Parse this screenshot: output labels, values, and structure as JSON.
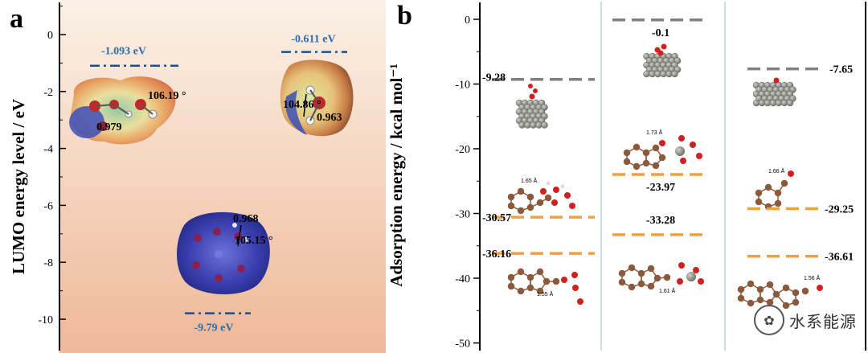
{
  "chart_data": [
    {
      "panel_label": "a",
      "type": "scatter",
      "ylabel": "LUMO energy level / eV",
      "ylim": [
        -11,
        1
      ],
      "yticks": [
        0,
        -2,
        -4,
        -6,
        -8,
        -10
      ],
      "levels": [
        {
          "value": -1.093,
          "label": "-1.093 eV",
          "color": "#1f4e8c"
        },
        {
          "value": -0.611,
          "label": "-0.611 eV",
          "color": "#1f4e8c"
        },
        {
          "value": -9.79,
          "label": "-9.79 eV",
          "color": "#1f4e8c"
        }
      ],
      "annotations": [
        "106.19 °",
        "0.979",
        "104.86 °",
        "0.963",
        "0.968",
        "105.15 °"
      ]
    },
    {
      "panel_label": "b",
      "type": "scatter",
      "ylabel": "Adsorption energy / kcal mol⁻¹",
      "ylim": [
        -50,
        2
      ],
      "yticks": [
        0,
        -10,
        -20,
        -30,
        -40,
        -50
      ],
      "columns": [
        {
          "levels": [
            {
              "value": -9.28,
              "label": "-9.28",
              "color": "#808080"
            },
            {
              "value": -30.57,
              "label": "-30.57",
              "color": "#f0a040"
            },
            {
              "value": -36.16,
              "label": "-36.16",
              "color": "#f0a040"
            }
          ],
          "distances": [
            "1.65 Å",
            "1.55 Å"
          ]
        },
        {
          "levels": [
            {
              "value": -0.1,
              "label": "-0.1",
              "color": "#808080"
            },
            {
              "value": -23.97,
              "label": "-23.97",
              "color": "#f0a040"
            },
            {
              "value": -33.28,
              "label": "-33.28",
              "color": "#f0a040"
            }
          ],
          "distances": [
            "1.73 Å",
            "1.61 Å"
          ]
        },
        {
          "levels": [
            {
              "value": -7.65,
              "label": "-7.65",
              "color": "#808080"
            },
            {
              "value": -29.25,
              "label": "-29.25",
              "color": "#f0a040"
            },
            {
              "value": -36.61,
              "label": "-36.61",
              "color": "#f0a040"
            }
          ],
          "distances": [
            "1.66 Å",
            "1.56 Å"
          ]
        }
      ]
    }
  ],
  "watermark": {
    "text": "水系能源",
    "icon": "wechat-icon"
  }
}
